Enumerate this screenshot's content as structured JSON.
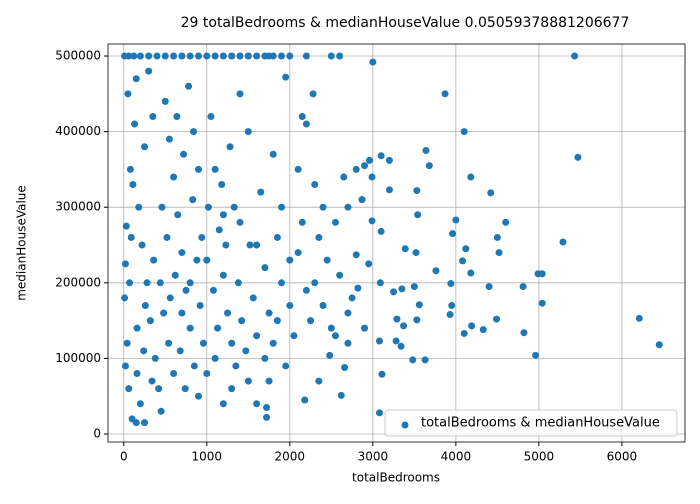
{
  "chart_data": {
    "type": "scatter",
    "title": "29 totalBedrooms & medianHouseValue 0.05059378881206677",
    "x_label": "totalBedrooms",
    "y_label": "medianHouseValue",
    "xlim": [
      -190,
      6760
    ],
    "ylim": [
      -10600,
      515900
    ],
    "xticks": [
      0,
      1000,
      2000,
      3000,
      4000,
      5000,
      6000
    ],
    "yticks": [
      0,
      100000,
      200000,
      300000,
      400000,
      500000
    ],
    "grid": true,
    "legend": "lower right",
    "series": [
      {
        "name": "totalBedrooms & medianHouseValue",
        "color": "#1f77b4",
        "x": [
          5430,
          5470,
          6210,
          6450,
          5040,
          4960,
          4990,
          5040,
          5290,
          4820,
          4810,
          4600,
          4500,
          4520,
          4490,
          4400,
          4330,
          4420,
          4180,
          4100,
          4190,
          4120,
          4080,
          4100,
          4180,
          4000,
          3960,
          3940,
          3950,
          3930,
          3870,
          3760,
          3640,
          3680,
          3530,
          3540,
          3560,
          3530,
          3520,
          3500,
          3480,
          3630,
          3390,
          3350,
          3370,
          3340,
          3290,
          3280,
          3250,
          3200,
          3200,
          3100,
          3100,
          3090,
          3080,
          3080,
          3110,
          3000,
          2990,
          2990,
          2960,
          2900,
          2870,
          2800,
          2820,
          2750,
          2700,
          2660,
          2620,
          2600,
          2500,
          2280,
          2150,
          2200,
          2300,
          2150,
          2200,
          2180,
          2350,
          2480,
          2550,
          2600,
          2400,
          2700,
          2900,
          2950,
          2100,
          2000,
          1900,
          1950,
          1800,
          1720,
          1720,
          1750,
          1600,
          1850,
          1700,
          1500,
          1400,
          1600,
          1200,
          10,
          60,
          120,
          200,
          300,
          400,
          500,
          600,
          700,
          800,
          900,
          1000,
          1100,
          1200,
          1300,
          1400,
          1500,
          1600,
          1700,
          1800,
          1900,
          2000,
          2200,
          1750,
          50,
          80,
          30,
          20,
          10,
          40,
          60,
          20,
          100,
          150,
          250,
          200,
          300,
          350,
          250,
          180,
          220,
          280,
          320,
          380,
          420,
          450,
          500,
          550,
          600,
          650,
          700,
          750,
          800,
          850,
          900,
          520,
          480,
          620,
          680,
          720,
          780,
          830,
          880,
          920,
          960,
          1000,
          1050,
          1100,
          1150,
          1200,
          1250,
          1300,
          1350,
          1020,
          1080,
          1130,
          1180,
          1230,
          1280,
          1330,
          1380,
          1420,
          1470,
          1520,
          1560,
          1600,
          1650,
          1700,
          1750,
          1800,
          1850,
          1900,
          1950,
          2000,
          2050,
          2100,
          2250,
          2300,
          2350,
          2400,
          2450,
          2500,
          2550,
          2650,
          2700,
          2800,
          150,
          130,
          110,
          90,
          70,
          160,
          240,
          340,
          440,
          540,
          640,
          740,
          840,
          940,
          560,
          460,
          360,
          260,
          160,
          600,
          700,
          800,
          900,
          1000,
          1100,
          1200,
          1300,
          1400,
          1500
        ],
        "y": [
          500000,
          366000,
          153000,
          118000,
          173000,
          104000,
          212000,
          212000,
          254000,
          134000,
          195000,
          280000,
          260000,
          240000,
          152000,
          195000,
          138000,
          319000,
          340000,
          400000,
          143000,
          245000,
          229000,
          133000,
          213000,
          283000,
          265000,
          199000,
          170000,
          158000,
          450000,
          216000,
          375000,
          355000,
          322000,
          290000,
          171000,
          151000,
          240000,
          195000,
          98000,
          98000,
          245000,
          192000,
          143000,
          116000,
          152000,
          123000,
          188000,
          362000,
          323000,
          268000,
          368000,
          200000,
          123000,
          28000,
          79000,
          492000,
          282000,
          340000,
          362000,
          355000,
          310000,
          237000,
          193000,
          180000,
          160000,
          88000,
          51000,
          500000,
          500000,
          450000,
          420000,
          410000,
          330000,
          280000,
          190000,
          45000,
          70000,
          104000,
          130000,
          210000,
          300000,
          300000,
          140000,
          225000,
          350000,
          230000,
          300000,
          472000,
          370000,
          35000,
          22000,
          70000,
          40000,
          150000,
          100000,
          400000,
          450000,
          250000,
          40000,
          500000,
          500000,
          500000,
          500000,
          500000,
          500000,
          500000,
          500000,
          500000,
          500000,
          500000,
          500000,
          500000,
          500000,
          500000,
          500000,
          500000,
          500000,
          500000,
          500000,
          500000,
          500000,
          500000,
          500000,
          450000,
          350000,
          275000,
          225000,
          180000,
          120000,
          60000,
          90000,
          20000,
          15000,
          15000,
          40000,
          480000,
          420000,
          380000,
          300000,
          250000,
          200000,
          150000,
          100000,
          60000,
          30000,
          440000,
          390000,
          340000,
          290000,
          240000,
          190000,
          140000,
          90000,
          50000,
          260000,
          160000,
          210000,
          110000,
          370000,
          460000,
          310000,
          230000,
          170000,
          120000,
          80000,
          420000,
          350000,
          270000,
          210000,
          160000,
          120000,
          90000,
          300000,
          190000,
          140000,
          330000,
          250000,
          380000,
          300000,
          200000,
          150000,
          110000,
          250000,
          180000,
          130000,
          320000,
          220000,
          160000,
          120000,
          260000,
          200000,
          90000,
          170000,
          130000,
          240000,
          150000,
          200000,
          260000,
          170000,
          230000,
          140000,
          280000,
          340000,
          120000,
          350000,
          470000,
          410000,
          330000,
          260000,
          200000,
          140000,
          110000,
          70000,
          200000,
          120000,
          420000,
          60000,
          400000,
          260000,
          180000,
          300000,
          230000,
          170000,
          80000,
          80000,
          160000,
          200000,
          350000,
          230000,
          100000,
          290000,
          60000,
          280000,
          70000
        ]
      }
    ]
  }
}
